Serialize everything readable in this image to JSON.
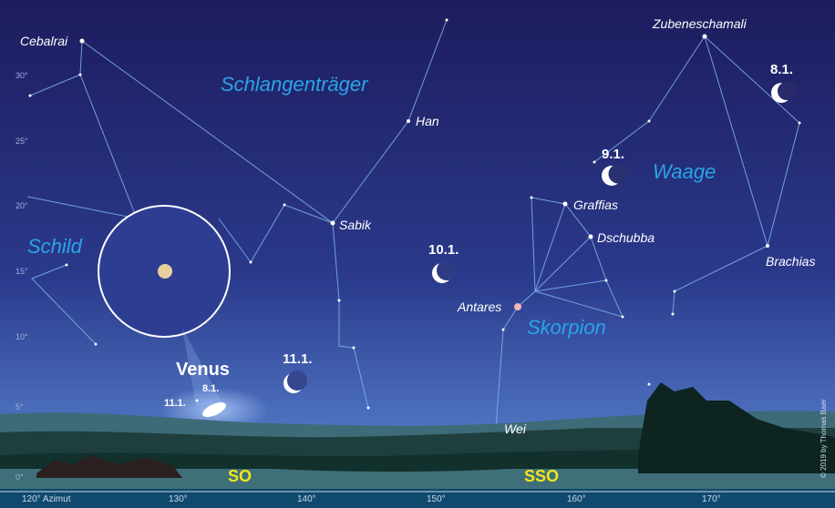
{
  "constellations": [
    "Schlangenträger",
    "Schild",
    "Skorpion",
    "Waage"
  ],
  "stars": [
    "Cebalrai",
    "Han",
    "Sabik",
    "Zubeneschamali",
    "Graffias",
    "Dschubba",
    "Antares",
    "Wei",
    "Brachias"
  ],
  "moon_dates": [
    "8.1.",
    "9.1.",
    "10.1.",
    "11.1."
  ],
  "venus": {
    "label": "Venus",
    "dates": [
      "8.1.",
      "11.1."
    ]
  },
  "altitude_labels": [
    "30°",
    "25°",
    "20°",
    "15°",
    "10°",
    "5°",
    "0°"
  ],
  "azimuth_labels": [
    "120° Azimut",
    "130°",
    "140°",
    "150°",
    "160°",
    "170°"
  ],
  "directions": [
    "SO",
    "SSO"
  ],
  "credit": "© 2019 by Thomas Baer"
}
